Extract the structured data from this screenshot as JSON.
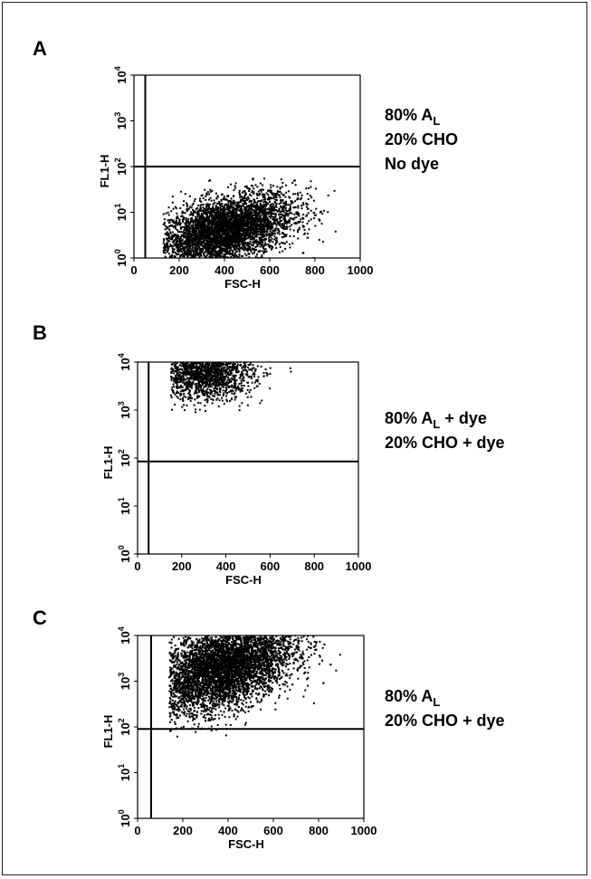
{
  "chart_data": [
    {
      "type": "scatter",
      "panel": "A",
      "xlabel": "FSC-H",
      "ylabel": "FL1-H",
      "xlim": [
        0,
        1000
      ],
      "ylim_log10": [
        0,
        4
      ],
      "x_ticks": [
        "0",
        "200",
        "400",
        "600",
        "800",
        "1000"
      ],
      "y_ticks": [
        {
          "base": "10",
          "exp": "0"
        },
        {
          "base": "10",
          "exp": "1"
        },
        {
          "base": "10",
          "exp": "2"
        },
        {
          "base": "10",
          "exp": "3"
        },
        {
          "base": "10",
          "exp": "4"
        }
      ],
      "gate_x": 50,
      "gate_y": 100,
      "annotation": [
        {
          "main": "80% A",
          "sub": "L",
          "rest": ""
        },
        {
          "main": "20% CHO",
          "sub": "",
          "rest": ""
        },
        {
          "main": "No dye",
          "sub": "",
          "rest": ""
        }
      ],
      "population": {
        "x_range": [
          130,
          900
        ],
        "y_range": [
          1,
          60
        ],
        "center_x": 400,
        "center_y": 4,
        "n_points": 4500,
        "slope": 0.6
      },
      "color": "#000000"
    },
    {
      "type": "scatter",
      "panel": "B",
      "xlabel": "FSC-H",
      "ylabel": "FL1-H",
      "xlim": [
        0,
        1000
      ],
      "ylim_log10": [
        0,
        4
      ],
      "x_ticks": [
        "0",
        "200",
        "400",
        "600",
        "800",
        "1000"
      ],
      "y_ticks": [
        {
          "base": "10",
          "exp": "0"
        },
        {
          "base": "10",
          "exp": "1"
        },
        {
          "base": "10",
          "exp": "2"
        },
        {
          "base": "10",
          "exp": "3"
        },
        {
          "base": "10",
          "exp": "4"
        }
      ],
      "gate_x": 50,
      "gate_y": 85,
      "annotation": [
        {
          "main": "80% A",
          "sub": "L",
          "rest": " + dye"
        },
        {
          "main": "20% CHO + dye",
          "sub": "",
          "rest": ""
        }
      ],
      "population": {
        "x_range": [
          150,
          700
        ],
        "y_range": [
          400,
          10000
        ],
        "center_x": 300,
        "center_y": 6000,
        "n_points": 1800,
        "slope": 0.0
      },
      "color": "#000000"
    },
    {
      "type": "scatter",
      "panel": "C",
      "xlabel": "FSC-H",
      "ylabel": "FL1-H",
      "xlim": [
        0,
        1000
      ],
      "ylim_log10": [
        0,
        4
      ],
      "x_ticks": [
        "0",
        "200",
        "400",
        "600",
        "800",
        "1000"
      ],
      "y_ticks": [
        {
          "base": "10",
          "exp": "0"
        },
        {
          "base": "10",
          "exp": "1"
        },
        {
          "base": "10",
          "exp": "2"
        },
        {
          "base": "10",
          "exp": "3"
        },
        {
          "base": "10",
          "exp": "4"
        }
      ],
      "gate_x": 60,
      "gate_y": 90,
      "annotation": [
        {
          "main": "80% A",
          "sub": "L",
          "rest": ""
        },
        {
          "main": "20% CHO + dye",
          "sub": "",
          "rest": ""
        }
      ],
      "population": {
        "x_range": [
          140,
          920
        ],
        "y_range": [
          60,
          10000
        ],
        "center_x": 380,
        "center_y": 2000,
        "n_points": 6000,
        "slope": 0.7
      },
      "color": "#000000"
    }
  ]
}
